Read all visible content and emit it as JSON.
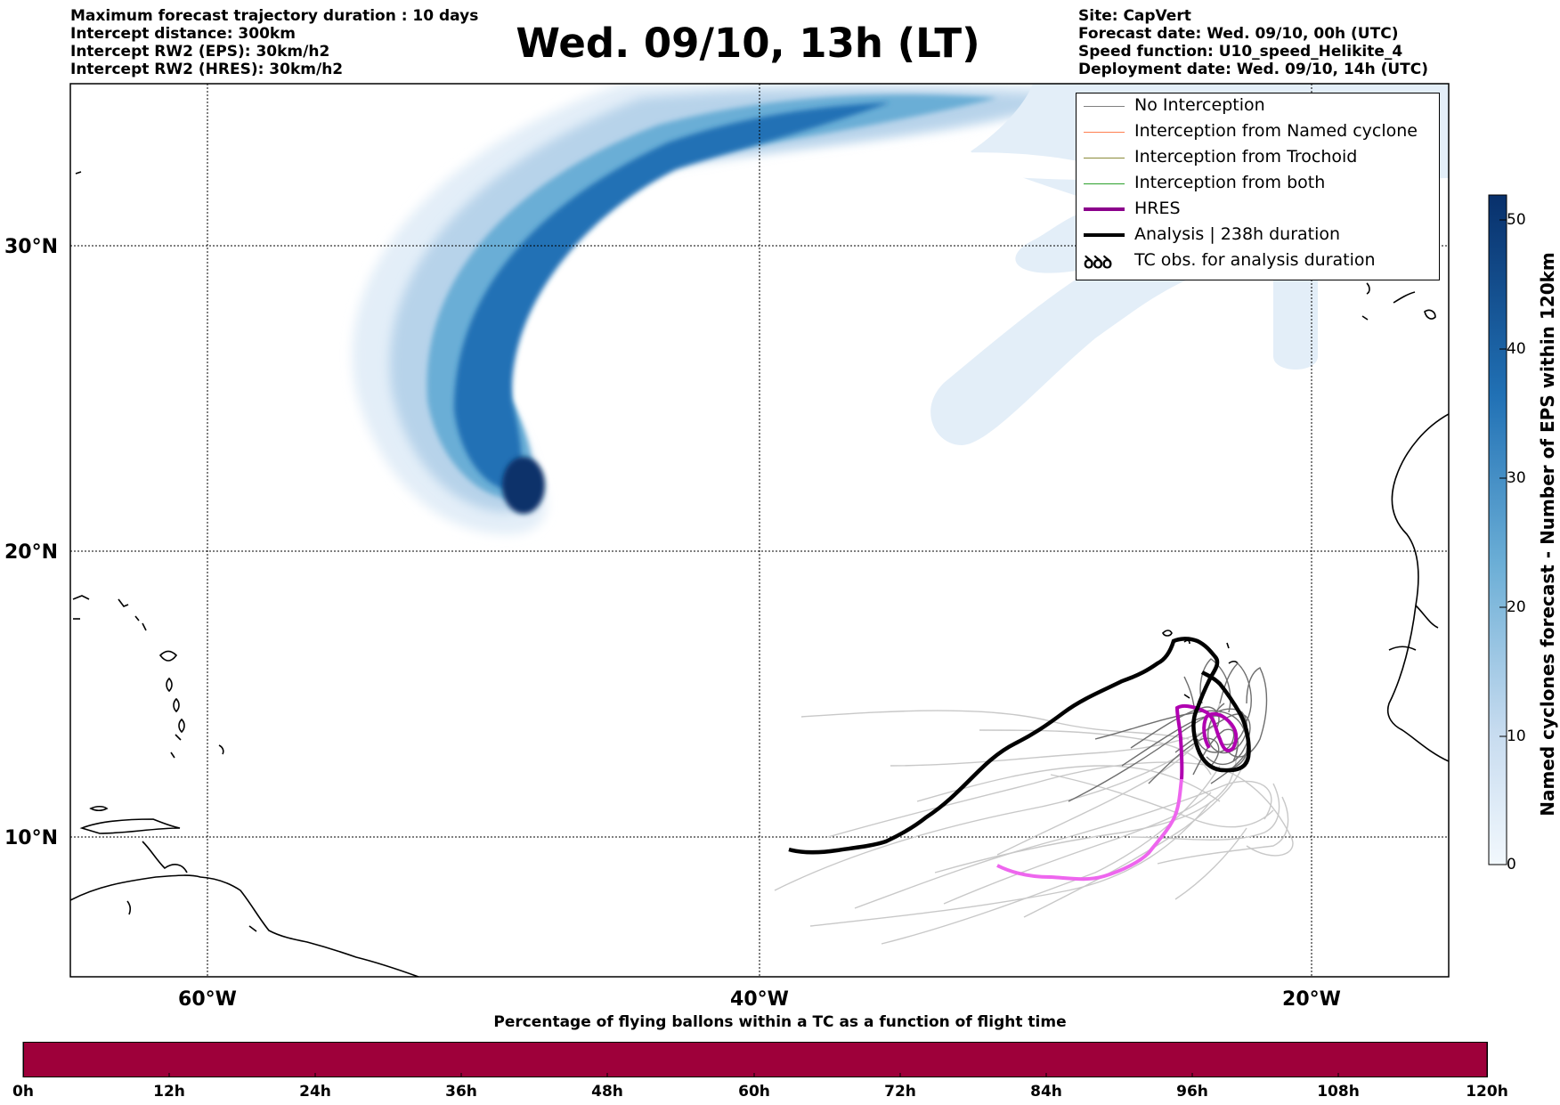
{
  "title": "Wed. 09/10, 13h (LT)",
  "info_left": [
    "Maximum forecast trajectory duration : 10 days",
    "Intercept distance: 300km",
    "Intercept RW2 (EPS):  30km/h2",
    "Intercept RW2 (HRES): 30km/h2"
  ],
  "info_right": [
    "Site: CapVert",
    "Forecast date: Wed. 09/10, 00h (UTC)",
    "Speed function: U10_speed_Helikite_4",
    "Deployment date: Wed. 09/10, 14h (UTC)"
  ],
  "map": {
    "lon_labels": [
      "60°W",
      "40°W",
      "20°W"
    ],
    "lat_labels": [
      "30°N",
      "20°N",
      "10°N"
    ]
  },
  "legend": [
    {
      "label": "No Interception",
      "color": "#808080",
      "icon": "thin-line"
    },
    {
      "label": "Interception from Named cyclone",
      "color": "#ff7f50",
      "icon": "thin-line"
    },
    {
      "label": "Interception from Trochoid",
      "color": "#8b8b3a",
      "icon": "thin-line"
    },
    {
      "label": "Interception from both",
      "color": "#2ca02c",
      "icon": "thin-line"
    },
    {
      "label": "HRES",
      "color": "#8b008b",
      "icon": "thick-line"
    },
    {
      "label": "Analysis | 238h duration",
      "color": "#000000",
      "icon": "thick-line"
    },
    {
      "label": "TC obs. for analysis duration",
      "color": "#000000",
      "icon": "cyclone-symbols",
      "symbol": "ꝺꝺꝺ"
    }
  ],
  "colorbar": {
    "label": "Named cyclones forecast - Number of EPS within 120km",
    "ticks": [
      "50",
      "40",
      "30",
      "20",
      "10",
      "0"
    ],
    "colors": [
      "#eaf3fb",
      "#08306b"
    ]
  },
  "percentage_bar": {
    "title": "Percentage of flying ballons within a TC as a function of flight time",
    "color": "#9e003a",
    "ticks": [
      "0h",
      "12h",
      "24h",
      "36h",
      "48h",
      "60h",
      "72h",
      "84h",
      "96h",
      "108h",
      "120h"
    ]
  }
}
